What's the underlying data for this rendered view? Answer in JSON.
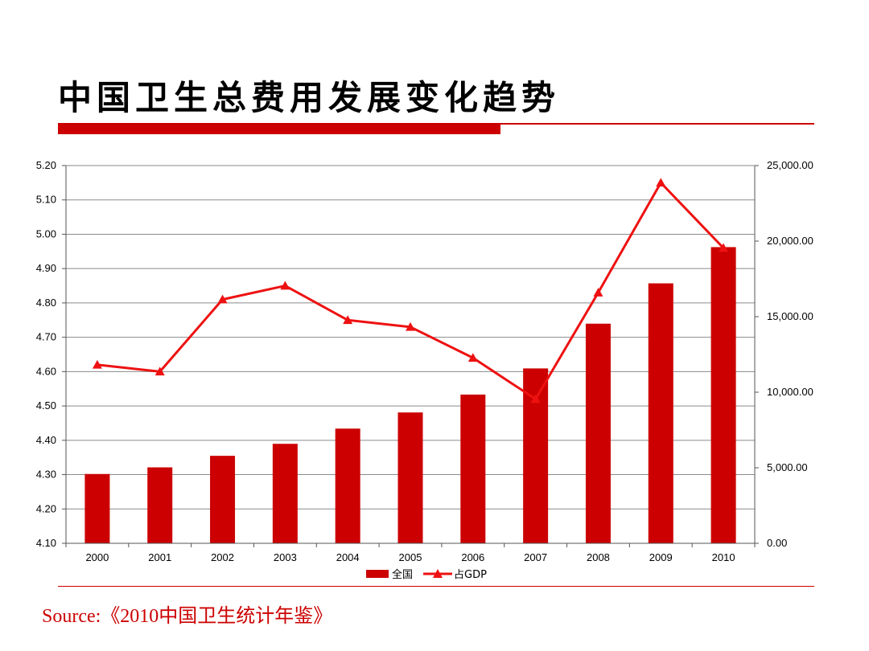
{
  "slide": {
    "title": "中国卫生总费用发展变化趋势",
    "source": "Source:《2010中国卫生统计年鉴》",
    "accent_color": "#cc0000"
  },
  "chart_data": {
    "type": "bar",
    "categories": [
      "2000",
      "2001",
      "2002",
      "2003",
      "2004",
      "2005",
      "2006",
      "2007",
      "2008",
      "2009",
      "2010"
    ],
    "series": [
      {
        "name": "全国",
        "type": "bar",
        "axis": "right",
        "color": "#cc0000",
        "values": [
          4586.6,
          5025.9,
          5790.0,
          6584.1,
          7590.3,
          8659.9,
          9843.3,
          11573.9,
          14535.4,
          17204.8,
          19603.0
        ]
      },
      {
        "name": "占GDP",
        "type": "line",
        "axis": "left",
        "color": "#ee1111",
        "marker": "triangle",
        "values": [
          4.62,
          4.6,
          4.81,
          4.85,
          4.75,
          4.73,
          4.64,
          4.52,
          4.83,
          5.15,
          4.96
        ]
      }
    ],
    "y_left": {
      "ylim": [
        4.1,
        5.2
      ],
      "ticks": [
        "5.20",
        "5.10",
        "5.00",
        "4.90",
        "4.80",
        "4.70",
        "4.60",
        "4.50",
        "4.40",
        "4.30",
        "4.20",
        "4.10"
      ]
    },
    "y_right": {
      "ylim": [
        0,
        25000
      ],
      "ticks": [
        "25,000.00",
        "20,000.00",
        "15,000.00",
        "10,000.00",
        "5,000.00",
        "0.00"
      ]
    },
    "grid": true,
    "legend": "bottom"
  }
}
